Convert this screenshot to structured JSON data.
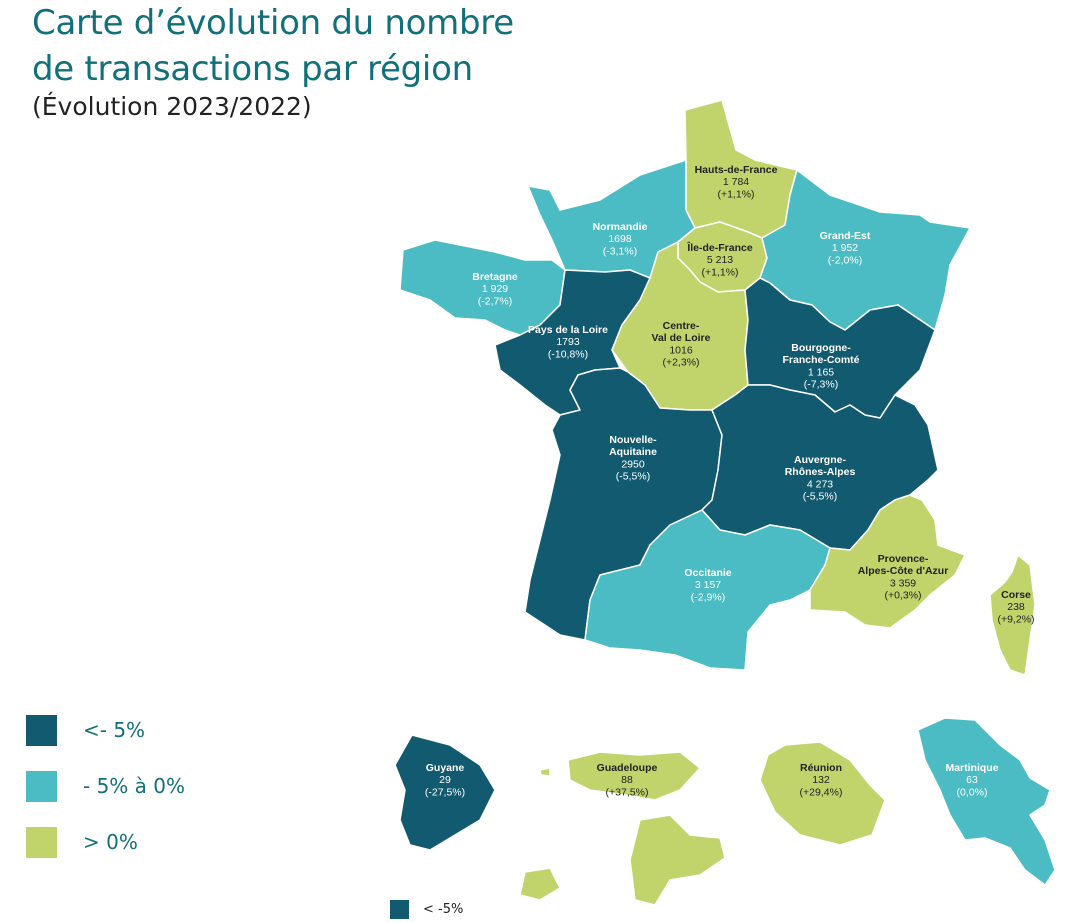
{
  "title_line1": "Carte d’évolution du nombre",
  "title_line2": "de transactions par région",
  "subtitle": "(Évolution 2023/2022)",
  "colors": {
    "dark": "#125a70",
    "light": "#4bbcc4",
    "lime": "#c1d46c",
    "title": "#11707a"
  },
  "legend": [
    {
      "label": "<- 5%",
      "color": "#125a70"
    },
    {
      "label": "- 5% à 0%",
      "color": "#4bbcc4"
    },
    {
      "label": "> 0%",
      "color": "#c1d46c"
    }
  ],
  "bottom_legend": {
    "label": "< -5%",
    "color": "#125a70"
  },
  "regions": {
    "hauts_de_france": {
      "name": [
        "Hauts-de-France"
      ],
      "count": "1 784",
      "evolution": "(+1,1%)",
      "category": "> 0%"
    },
    "normandie": {
      "name": [
        "Normandie"
      ],
      "count": "1698",
      "evolution": "(-3,1%)",
      "category": "- 5% à 0%"
    },
    "ile_de_france": {
      "name": [
        "Île-de-France"
      ],
      "count": "5 213",
      "evolution": "(+1,1%)",
      "category": "> 0%"
    },
    "grand_est": {
      "name": [
        "Grand-Est"
      ],
      "count": "1 952",
      "evolution": "(-2,0%)",
      "category": "- 5% à 0%"
    },
    "bretagne": {
      "name": [
        "Bretagne"
      ],
      "count": "1 929",
      "evolution": "(-2,7%)",
      "category": "- 5% à 0%"
    },
    "pays_de_la_loire": {
      "name": [
        "Pays de la Loire"
      ],
      "count": "1793",
      "evolution": "(-10,8%)",
      "category": "<- 5%"
    },
    "centre_val_de_loire": {
      "name": [
        "Centre-",
        "Val de Loire"
      ],
      "count": "1016",
      "evolution": "(+2,3%)",
      "category": "> 0%"
    },
    "bourgogne_franche_comte": {
      "name": [
        "Bourgogne-",
        "Franche-Comté"
      ],
      "count": "1 165",
      "evolution": "(-7,3%)",
      "category": "<- 5%"
    },
    "nouvelle_aquitaine": {
      "name": [
        "Nouvelle-",
        "Aquitaine"
      ],
      "count": "2950",
      "evolution": "(-5,5%)",
      "category": "<- 5%"
    },
    "auvergne_rhone_alpes": {
      "name": [
        "Auvergne-",
        "Rhônes-Alpes"
      ],
      "count": "4 273",
      "evolution": "(-5,5%)",
      "category": "<- 5%"
    },
    "occitanie": {
      "name": [
        "Occitanie"
      ],
      "count": "3 157",
      "evolution": "(-2,9%)",
      "category": "- 5% à 0%"
    },
    "paca": {
      "name": [
        "Provence-",
        "Alpes-Côte d'Azur"
      ],
      "count": "3 359",
      "evolution": "(+0,3%)",
      "category": "> 0%"
    },
    "corse": {
      "name": [
        "Corse"
      ],
      "count": "238",
      "evolution": "(+9,2%)",
      "category": "> 0%"
    },
    "guyane": {
      "name": [
        "Guyane"
      ],
      "count": "29",
      "evolution": "(-27,5%)",
      "category": "<- 5%"
    },
    "guadeloupe": {
      "name": [
        "Guadeloupe"
      ],
      "count": "88",
      "evolution": "(+37,5%)",
      "category": "> 0%"
    },
    "reunion": {
      "name": [
        "Réunion"
      ],
      "count": "132",
      "evolution": "(+29,4%)",
      "category": "> 0%"
    },
    "martinique": {
      "name": [
        "Martinique"
      ],
      "count": "63",
      "evolution": "(0,0%)",
      "category": "- 5% à 0%"
    }
  }
}
